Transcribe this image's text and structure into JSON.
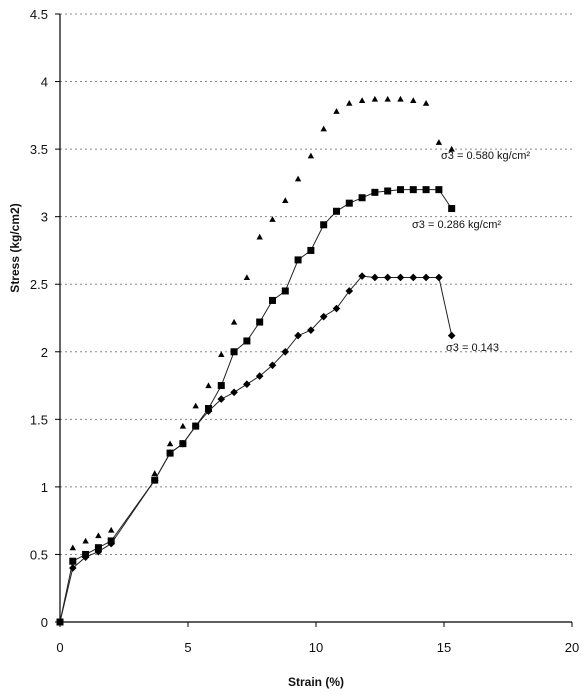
{
  "chart_data": {
    "type": "scatter",
    "xlabel": "Strain (%)",
    "ylabel": "Stress (kg/cm2)",
    "xlim": [
      0,
      20
    ],
    "ylim": [
      0,
      4.5
    ],
    "x_ticks": [
      "0",
      "5",
      "10",
      "15",
      "20"
    ],
    "y_ticks": [
      "0",
      "0.5",
      "1",
      "1.5",
      "2",
      "2.5",
      "3",
      "3.5",
      "4",
      "4.5"
    ],
    "grid": "horizontal dotted",
    "series": [
      {
        "label": "σ3 = 0.580 kg/cm²",
        "marker": "triangle",
        "line": false,
        "x": [
          0,
          0.5,
          1.0,
          1.5,
          2.0,
          3.7,
          4.3,
          4.8,
          5.3,
          5.8,
          6.3,
          6.8,
          7.3,
          7.8,
          8.3,
          8.8,
          9.3,
          9.8,
          10.3,
          10.8,
          11.3,
          11.8,
          12.3,
          12.8,
          13.3,
          13.8,
          14.3,
          14.8,
          15.3
        ],
        "y": [
          0,
          0.55,
          0.6,
          0.64,
          0.68,
          1.1,
          1.32,
          1.45,
          1.6,
          1.75,
          1.98,
          2.22,
          2.55,
          2.85,
          2.98,
          3.12,
          3.28,
          3.45,
          3.65,
          3.78,
          3.84,
          3.86,
          3.87,
          3.87,
          3.87,
          3.86,
          3.84,
          3.55,
          3.5
        ]
      },
      {
        "label": "σ3 = 0.286 kg/cm²",
        "marker": "square",
        "line": true,
        "x": [
          0,
          0.5,
          1.0,
          1.5,
          2.0,
          3.7,
          4.3,
          4.8,
          5.3,
          5.8,
          6.3,
          6.8,
          7.3,
          7.8,
          8.3,
          8.8,
          9.3,
          9.8,
          10.3,
          10.8,
          11.3,
          11.8,
          12.3,
          12.8,
          13.3,
          13.8,
          14.3,
          14.8,
          15.3
        ],
        "y": [
          0,
          0.45,
          0.5,
          0.55,
          0.6,
          1.05,
          1.25,
          1.32,
          1.45,
          1.58,
          1.75,
          2.0,
          2.08,
          2.22,
          2.38,
          2.45,
          2.68,
          2.75,
          2.94,
          3.04,
          3.1,
          3.14,
          3.18,
          3.19,
          3.2,
          3.2,
          3.2,
          3.2,
          3.06
        ]
      },
      {
        "label": "σ3 = 0.143",
        "marker": "diamond",
        "line": true,
        "x": [
          0,
          0.5,
          1.0,
          1.5,
          2.0,
          3.7,
          4.3,
          4.8,
          5.3,
          5.8,
          6.3,
          6.8,
          7.3,
          7.8,
          8.3,
          8.8,
          9.3,
          9.8,
          10.3,
          10.8,
          11.3,
          11.8,
          12.3,
          12.8,
          13.3,
          13.8,
          14.3,
          14.8,
          15.3
        ],
        "y": [
          0,
          0.4,
          0.48,
          0.52,
          0.58,
          1.05,
          1.25,
          1.32,
          1.45,
          1.56,
          1.65,
          1.7,
          1.76,
          1.82,
          1.9,
          2.0,
          2.12,
          2.16,
          2.26,
          2.32,
          2.45,
          2.56,
          2.55,
          2.55,
          2.55,
          2.55,
          2.55,
          2.55,
          2.12
        ]
      }
    ]
  }
}
